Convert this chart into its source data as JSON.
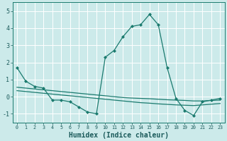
{
  "line1_x": [
    0,
    1,
    2,
    3,
    4,
    5,
    6,
    7,
    8,
    9,
    10,
    11,
    12,
    13,
    14,
    15,
    16,
    17,
    18,
    19,
    20,
    21,
    22,
    23
  ],
  "line1_y": [
    1.7,
    0.9,
    0.6,
    0.5,
    -0.2,
    -0.2,
    -0.3,
    -0.6,
    -0.9,
    -1.0,
    2.3,
    2.7,
    3.5,
    4.1,
    4.2,
    4.8,
    4.2,
    1.7,
    -0.1,
    -0.8,
    -1.1,
    -0.3,
    -0.2,
    -0.1
  ],
  "line2_x": [
    0,
    1,
    2,
    3,
    4,
    5,
    6,
    7,
    8,
    9,
    10,
    11,
    12,
    13,
    14,
    15,
    16,
    17,
    18,
    19,
    20,
    21,
    22,
    23
  ],
  "line2_y": [
    0.55,
    0.5,
    0.45,
    0.4,
    0.35,
    0.3,
    0.25,
    0.2,
    0.15,
    0.1,
    0.05,
    0.0,
    -0.05,
    -0.08,
    -0.1,
    -0.12,
    -0.15,
    -0.18,
    -0.2,
    -0.22,
    -0.25,
    -0.25,
    -0.22,
    -0.2
  ],
  "line3_x": [
    0,
    1,
    2,
    3,
    4,
    5,
    6,
    7,
    8,
    9,
    10,
    11,
    12,
    13,
    14,
    15,
    16,
    17,
    18,
    19,
    20,
    21,
    22,
    23
  ],
  "line3_y": [
    0.35,
    0.3,
    0.25,
    0.2,
    0.15,
    0.1,
    0.05,
    0.0,
    -0.05,
    -0.1,
    -0.15,
    -0.2,
    -0.25,
    -0.3,
    -0.35,
    -0.38,
    -0.42,
    -0.45,
    -0.48,
    -0.5,
    -0.52,
    -0.48,
    -0.44,
    -0.4
  ],
  "color": "#1a7a6e",
  "bg_color": "#cceaea",
  "grid_color": "#b0d8d8",
  "xlabel": "Humidex (Indice chaleur)",
  "ylim": [
    -1.5,
    5.5
  ],
  "xlim": [
    -0.5,
    23.5
  ],
  "xticks": [
    0,
    1,
    2,
    3,
    4,
    5,
    6,
    7,
    8,
    9,
    10,
    11,
    12,
    13,
    14,
    15,
    16,
    17,
    18,
    19,
    20,
    21,
    22,
    23
  ],
  "yticks": [
    -1,
    0,
    1,
    2,
    3,
    4,
    5
  ]
}
